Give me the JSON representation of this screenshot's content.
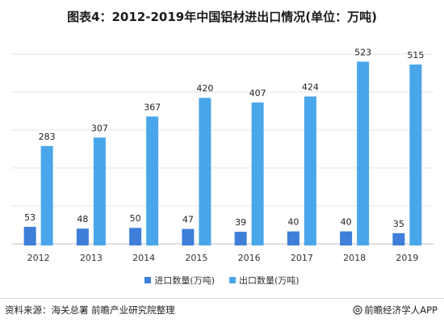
{
  "title": "图表4：2012-2019年中国铝材进出口情况(单位：万吨)",
  "legend": [
    {
      "label": "进口数量(万吨)",
      "color": "#3d7fd9"
    },
    {
      "label": "出口数量(万吨)",
      "color": "#4aa6ea"
    }
  ],
  "footer": {
    "source": "资料来源：海关总署 前瞻产业研究院整理",
    "brand": "前瞻经济学人APP",
    "brand_icon": "at-icon"
  },
  "chart_data": {
    "type": "bar",
    "categories": [
      "2012",
      "2013",
      "2014",
      "2015",
      "2016",
      "2017",
      "2018",
      "2019"
    ],
    "series": [
      {
        "name": "进口数量(万吨)",
        "values": [
          53,
          48,
          50,
          47,
          39,
          40,
          40,
          35
        ],
        "color": "#3d7fd9"
      },
      {
        "name": "出口数量(万吨)",
        "values": [
          283,
          307,
          367,
          420,
          407,
          424,
          523,
          515
        ],
        "color": "#4aa6ea"
      }
    ],
    "ylim": [
      0,
      540
    ],
    "grid": true,
    "legend_position": "bottom"
  }
}
